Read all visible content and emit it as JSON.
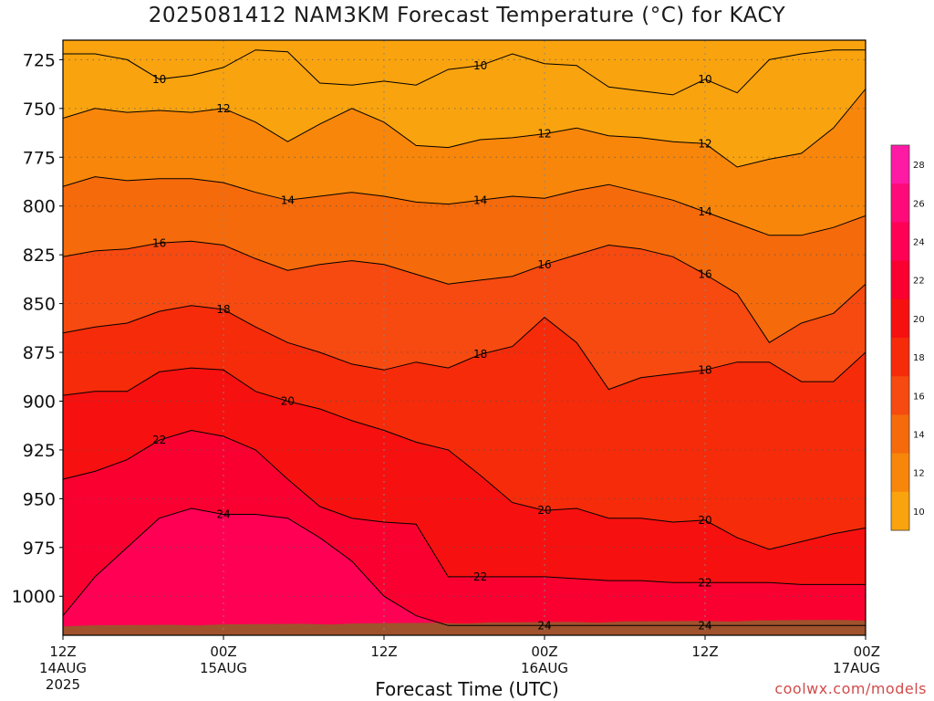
{
  "title": "2025081412 NAM3KM Forecast Temperature (°C) for KACY",
  "credit": "coolwx.com/models",
  "chart_data": {
    "type": "heatmap",
    "title": "2025081412 NAM3KM Forecast Temperature (°C) for KACY",
    "xlabel": "Forecast Time (UTC)",
    "ylabel": "",
    "x_unit": "hours since 12Z 14AUG 2025",
    "xlim": [
      0,
      60
    ],
    "ylim": [
      1020,
      715
    ],
    "x_ticks": [
      {
        "x": 0,
        "line1": "12Z",
        "line2": "14AUG",
        "line3": "2025"
      },
      {
        "x": 12,
        "line1": "00Z",
        "line2": "15AUG",
        "line3": ""
      },
      {
        "x": 24,
        "line1": "12Z",
        "line2": "",
        "line3": ""
      },
      {
        "x": 36,
        "line1": "00Z",
        "line2": "16AUG",
        "line3": ""
      },
      {
        "x": 48,
        "line1": "12Z",
        "line2": "",
        "line3": ""
      },
      {
        "x": 60,
        "line1": "00Z",
        "line2": "17AUG",
        "line3": ""
      }
    ],
    "y_ticks": [
      "725",
      "750",
      "775",
      "800",
      "825",
      "850",
      "875",
      "900",
      "925",
      "950",
      "975",
      "1000"
    ],
    "colorbar": {
      "levels": [
        28,
        26,
        24,
        22,
        20,
        18,
        16,
        14,
        12,
        10
      ],
      "colors": [
        "#ff1aa6",
        "#ff0a7a",
        "#ff0055",
        "#fa0030",
        "#f71010",
        "#f52b0a",
        "#f64a10",
        "#f56a0b",
        "#f7860a",
        "#f9a30f"
      ]
    },
    "terrain_color": "#a0522d",
    "contours": [
      {
        "label": 10,
        "y": [
          722,
          722,
          725,
          735,
          733,
          729,
          720,
          721,
          737,
          738,
          736,
          738,
          730,
          728,
          722,
          727,
          728,
          739,
          741,
          743,
          735,
          742,
          725,
          722,
          720,
          720
        ]
      },
      {
        "label": 12,
        "y": [
          755,
          750,
          752,
          751,
          752,
          750,
          757,
          767,
          758,
          750,
          757,
          769,
          770,
          766,
          765,
          763,
          760,
          764,
          765,
          767,
          768,
          780,
          776,
          773,
          760,
          740
        ]
      },
      {
        "label": 14,
        "y": [
          790,
          785,
          787,
          786,
          786,
          788,
          793,
          797,
          795,
          793,
          795,
          798,
          799,
          797,
          795,
          796,
          792,
          789,
          793,
          797,
          803,
          809,
          815,
          815,
          811,
          805
        ]
      },
      {
        "label": 16,
        "y": [
          826,
          823,
          822,
          819,
          818,
          820,
          827,
          833,
          830,
          828,
          830,
          835,
          840,
          838,
          836,
          830,
          825,
          820,
          822,
          826,
          835,
          845,
          870,
          860,
          855,
          840
        ]
      },
      {
        "label": 18,
        "y": [
          865,
          862,
          860,
          854,
          851,
          853,
          862,
          870,
          875,
          881,
          884,
          880,
          883,
          876,
          872,
          857,
          870,
          894,
          888,
          886,
          884,
          880,
          880,
          890,
          890,
          875
        ]
      },
      {
        "label": 20,
        "y": [
          897,
          895,
          895,
          885,
          883,
          884,
          895,
          900,
          904,
          910,
          915,
          921,
          925,
          938,
          952,
          956,
          955,
          960,
          960,
          962,
          961,
          970,
          976,
          972,
          968,
          965
        ]
      },
      {
        "label": 22,
        "y": [
          940,
          936,
          930,
          920,
          915,
          918,
          925,
          940,
          954,
          960,
          962,
          963,
          990,
          990,
          990,
          990,
          991,
          992,
          992,
          993,
          993,
          993,
          993,
          994,
          994,
          994
        ]
      },
      {
        "label": 24,
        "y": [
          1010,
          990,
          975,
          960,
          955,
          958,
          958,
          960,
          970,
          982,
          1000,
          1010,
          1015,
          1015,
          1015,
          1015,
          1015,
          1015,
          1015,
          1015,
          1015,
          1015,
          1015,
          1015,
          1015,
          1015
        ]
      }
    ]
  }
}
